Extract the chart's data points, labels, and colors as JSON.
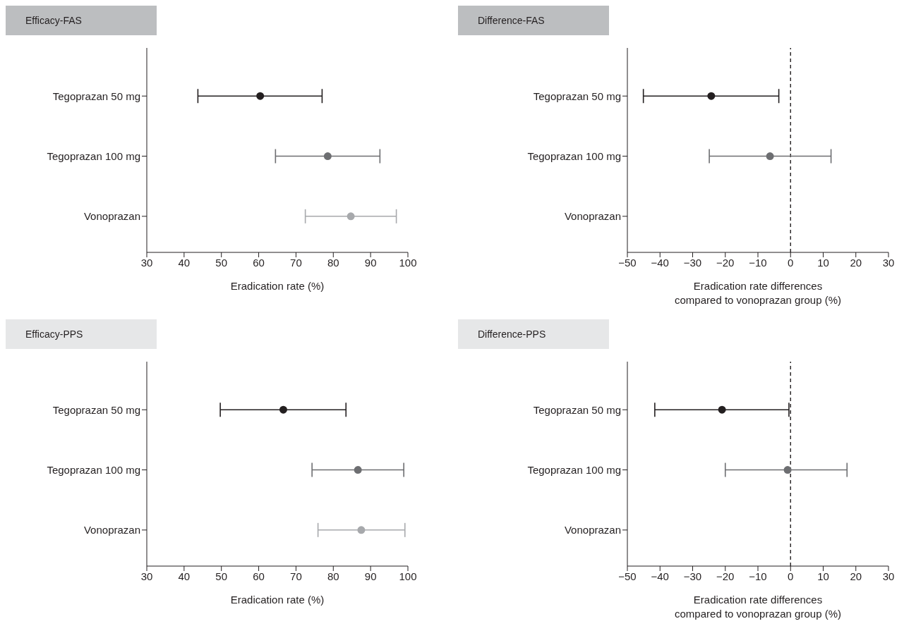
{
  "chart_data": [
    {
      "type": "scatter",
      "title": "Efficacy-FAS",
      "orientation": "horizontal",
      "categories": [
        "Tegoprazan 50 mg",
        "Tegoprazan 100 mg",
        "Vonoprazan"
      ],
      "values": [
        60.4,
        78.5,
        84.7
      ],
      "errors": [
        [
          43.7,
          77.0
        ],
        [
          64.5,
          92.5
        ],
        [
          72.5,
          96.9
        ]
      ],
      "colors": [
        "#231f20",
        "#6d6e71",
        "#a7a9ac"
      ],
      "marker": "circle",
      "xlim": [
        30,
        100
      ],
      "xticks": [
        30,
        40,
        50,
        60,
        70,
        80,
        90,
        100
      ],
      "xlabel": "Eradication rate (%)",
      "grid": false,
      "legend": false
    },
    {
      "type": "scatter",
      "title": "Difference-FAS",
      "orientation": "horizontal",
      "categories": [
        "Tegoprazan 50 mg",
        "Tegoprazan 100 mg",
        "Vonoprazan"
      ],
      "values": [
        -24.3,
        -6.3,
        null
      ],
      "errors": [
        [
          -45.1,
          -3.6
        ],
        [
          -24.9,
          12.4
        ],
        null
      ],
      "colors": [
        "#231f20",
        "#6d6e71",
        null
      ],
      "marker": "circle",
      "xlim": [
        -50,
        30
      ],
      "xticks": [
        -50,
        -40,
        -30,
        -20,
        -10,
        0,
        10,
        20,
        30
      ],
      "xlabel": "Eradication rate differences\ncompared to vonoprazan group (%)",
      "ref_lines": [
        {
          "axis": "x",
          "value": 0,
          "color": "#231f20",
          "line_style": "dashed"
        }
      ],
      "grid": false,
      "legend": false
    },
    {
      "type": "scatter",
      "title": "Efficacy-PPS",
      "orientation": "horizontal",
      "categories": [
        "Tegoprazan 50 mg",
        "Tegoprazan 100 mg",
        "Vonoprazan"
      ],
      "values": [
        66.6,
        86.6,
        87.5
      ],
      "errors": [
        [
          49.7,
          83.4
        ],
        [
          74.3,
          98.9
        ],
        [
          75.9,
          99.2
        ]
      ],
      "colors": [
        "#231f20",
        "#6d6e71",
        "#a7a9ac"
      ],
      "marker": "circle",
      "xlim": [
        30,
        100
      ],
      "xticks": [
        30,
        40,
        50,
        60,
        70,
        80,
        90,
        100
      ],
      "xlabel": "Eradication rate (%)",
      "grid": false,
      "legend": false
    },
    {
      "type": "scatter",
      "title": "Difference-PPS",
      "orientation": "horizontal",
      "categories": [
        "Tegoprazan 50 mg",
        "Tegoprazan 100 mg",
        "Vonoprazan"
      ],
      "values": [
        -21.0,
        -0.9,
        null
      ],
      "errors": [
        [
          -41.6,
          -0.5
        ],
        [
          -20.0,
          17.3
        ],
        null
      ],
      "colors": [
        "#231f20",
        "#6d6e71",
        null
      ],
      "marker": "circle",
      "xlim": [
        -50,
        30
      ],
      "xticks": [
        -50,
        -40,
        -30,
        -20,
        -10,
        0,
        10,
        20,
        30
      ],
      "xlabel": "Eradication rate differences\ncompared to vonoprazan group (%)",
      "ref_lines": [
        {
          "axis": "x",
          "value": 0,
          "color": "#231f20",
          "line_style": "dashed"
        }
      ],
      "grid": false,
      "legend": false
    }
  ]
}
